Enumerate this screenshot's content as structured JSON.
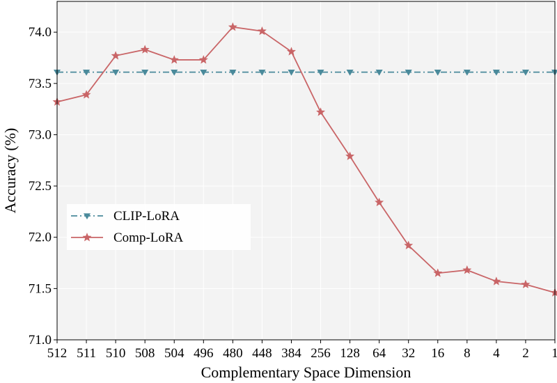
{
  "chart_data": {
    "type": "line",
    "title": "",
    "xlabel": "Complementary Space Dimension",
    "ylabel": "Accuracy (%)",
    "categories": [
      "512",
      "511",
      "510",
      "508",
      "504",
      "496",
      "480",
      "448",
      "384",
      "256",
      "128",
      "64",
      "32",
      "16",
      "8",
      "4",
      "2",
      "1"
    ],
    "ylim": [
      71.0,
      74.3
    ],
    "yticks": [
      "71.0",
      "71.5",
      "72.0",
      "72.5",
      "73.0",
      "73.5",
      "74.0"
    ],
    "grid": true,
    "legend_position": "center-left",
    "series": [
      {
        "name": "CLIP-LoRA",
        "color": "#4a8a9b",
        "line_style": "dash-dot",
        "marker": "triangle-down",
        "values": [
          73.61,
          73.61,
          73.61,
          73.61,
          73.61,
          73.61,
          73.61,
          73.61,
          73.61,
          73.61,
          73.61,
          73.61,
          73.61,
          73.61,
          73.61,
          73.61,
          73.61,
          73.61
        ]
      },
      {
        "name": "Comp-LoRA",
        "color": "#c96567",
        "line_style": "solid",
        "marker": "star",
        "values": [
          73.32,
          73.39,
          73.77,
          73.83,
          73.73,
          73.73,
          74.05,
          74.01,
          73.81,
          73.22,
          72.79,
          72.34,
          71.92,
          71.65,
          71.68,
          71.57,
          71.54,
          71.46
        ]
      }
    ]
  }
}
